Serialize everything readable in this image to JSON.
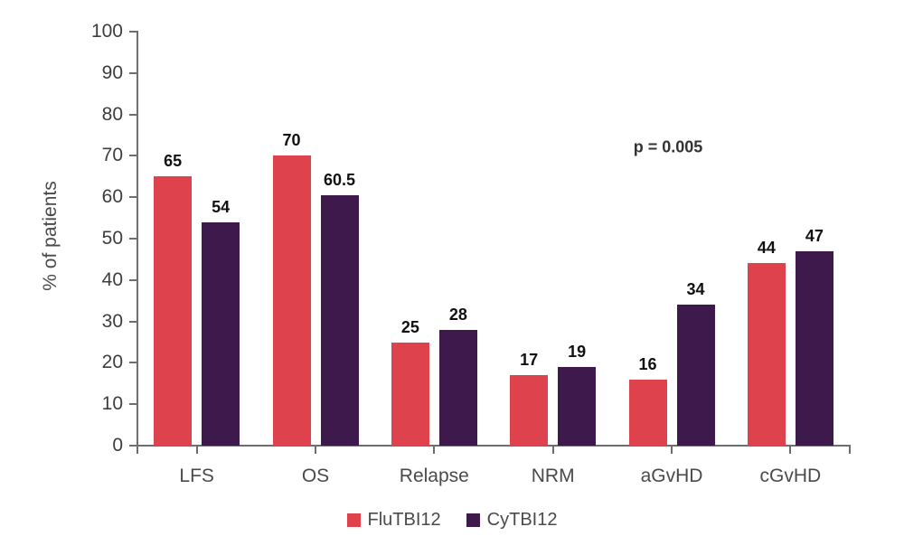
{
  "chart_data": {
    "type": "bar",
    "title": "",
    "ylabel": "% of patients",
    "categories": [
      "LFS",
      "OS",
      "Relapse",
      "NRM",
      "aGvHD",
      "cGvHD"
    ],
    "series": [
      {
        "name": "FluTBI12",
        "color": "#de424c",
        "values": [
          65,
          70,
          25,
          17,
          16,
          44
        ]
      },
      {
        "name": "CyTBI12",
        "color": "#3e1a4c",
        "values": [
          54,
          60.5,
          28,
          19,
          34,
          47
        ]
      }
    ],
    "ylim": [
      0,
      100
    ],
    "ytick_step": 10,
    "grid": false,
    "legend_position": "bottom",
    "annotation": {
      "text": "p = 0.005"
    }
  },
  "colors": {
    "axis": "#6e6e6e",
    "tick_label": "#3d3d3d",
    "category_label": "#4a4a4a",
    "value_label": "#111111",
    "legend_label": "#4a4a4a",
    "annotation": "#333333"
  }
}
